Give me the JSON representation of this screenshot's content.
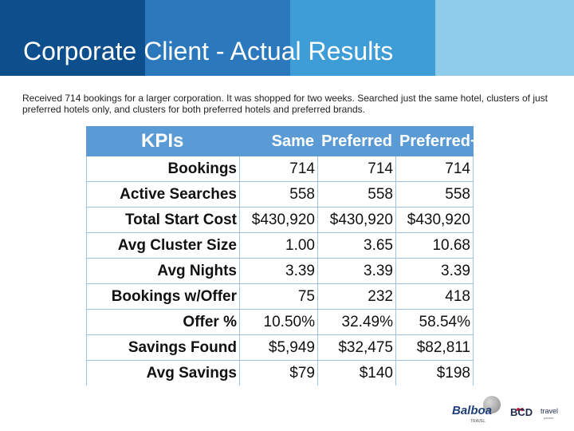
{
  "title": "Corporate Client - Actual Results",
  "description": "Received 714 bookings for a larger corporation.  It was shopped for two weeks.  Searched just the same hotel, clusters of just preferred hotels only, and clusters for both preferred hotels and preferred brands.",
  "banner_colors": [
    "#0d4e8c",
    "#2b78bd",
    "#3e9dd6",
    "#8fcbea"
  ],
  "table": {
    "headers": [
      "KPIs",
      "Same",
      "Preferred",
      "Preferred+"
    ],
    "rows": [
      {
        "label": "Bookings",
        "same": "714",
        "preferred": "714",
        "preferred_plus": "714"
      },
      {
        "label": "Active Searches",
        "same": "558",
        "preferred": "558",
        "preferred_plus": "558"
      },
      {
        "label": "Total Start Cost",
        "same": "$430,920",
        "preferred": "$430,920",
        "preferred_plus": "$430,920"
      },
      {
        "label": "Avg Cluster Size",
        "same": "1.00",
        "preferred": "3.65",
        "preferred_plus": "10.68"
      },
      {
        "label": "Avg Nights",
        "same": "3.39",
        "preferred": "3.39",
        "preferred_plus": "3.39"
      },
      {
        "label": "Bookings w/Offer",
        "same": "75",
        "preferred": "232",
        "preferred_plus": "418"
      },
      {
        "label": "Offer %",
        "same": "10.50%",
        "preferred": "32.49%",
        "preferred_plus": "58.54%"
      },
      {
        "label": "Savings Found",
        "same": "$5,949",
        "preferred": "$32,475",
        "preferred_plus": "$82,811"
      },
      {
        "label": "Avg Savings",
        "same": "$79",
        "preferred": "$140",
        "preferred_plus": "$198"
      }
    ]
  },
  "logos": {
    "balboa": "Balboa",
    "balboa_sub": "TRAVEL",
    "bcd": "BCD",
    "travel": "travel",
    "travel_sub": "partner"
  }
}
